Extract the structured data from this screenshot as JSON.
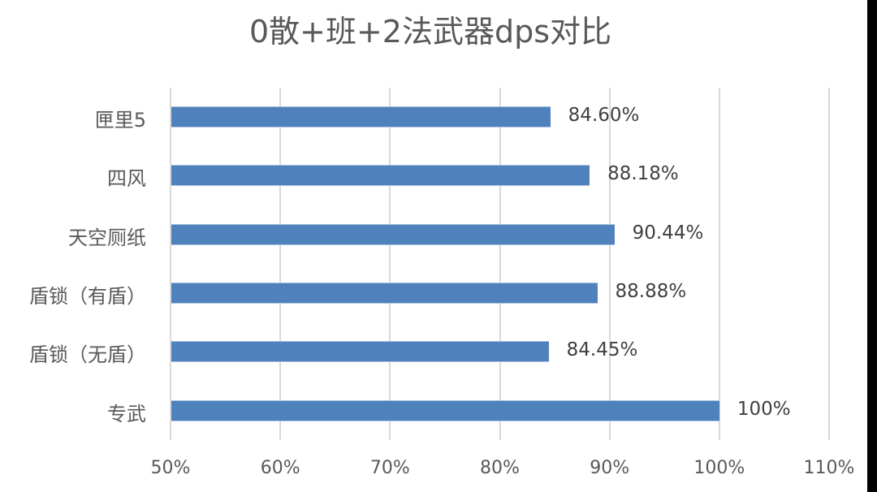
{
  "chart_data": {
    "type": "bar",
    "orientation": "horizontal",
    "title": "0散+班+2法武器dps对比",
    "xlabel": "",
    "ylabel": "",
    "categories": [
      "匣里5",
      "四风",
      "天空厕纸",
      "盾锁（有盾）",
      "盾锁（无盾）",
      "专武"
    ],
    "values": [
      84.6,
      88.18,
      90.44,
      88.88,
      84.45,
      100
    ],
    "value_labels": [
      "84.60%",
      "88.18%",
      "90.44%",
      "88.88%",
      "84.45%",
      "100%"
    ],
    "xlim": [
      50,
      110
    ],
    "xticks": [
      "50%",
      "60%",
      "70%",
      "80%",
      "90%",
      "100%",
      "110%"
    ],
    "grid": true,
    "legend": false,
    "bar_color": "#4f81bd"
  }
}
